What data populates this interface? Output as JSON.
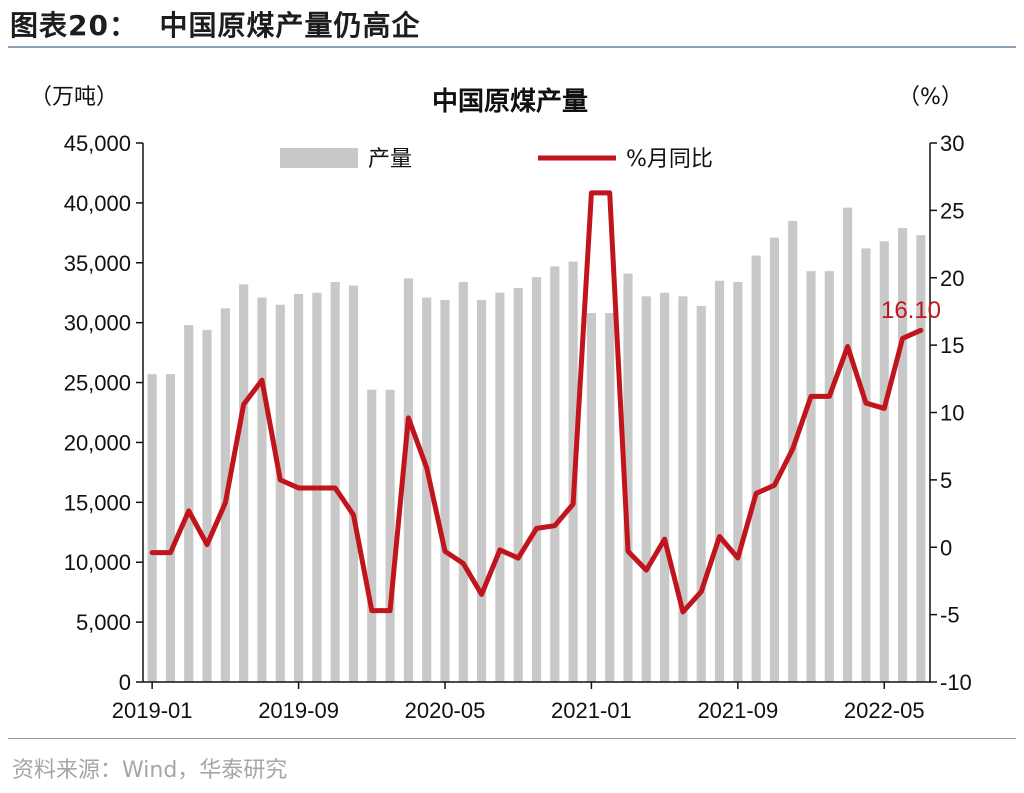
{
  "figure": {
    "title": "图表20：  中国原煤产量仍高企",
    "source": "资料来源：Wind，华泰研究"
  },
  "colors": {
    "bar": "#c8c8c8",
    "line": "#c0151c",
    "axis": "#111111",
    "rule": "#8aa0b8"
  },
  "chart_data": {
    "type": "bar",
    "title": "中国原煤产量",
    "left_unit": "（万吨）",
    "right_unit": "（%）",
    "ylim_left": [
      0,
      45000
    ],
    "ylim_right": [
      -10,
      30
    ],
    "y_ticks_left": [
      "0",
      "5,000",
      "10,000",
      "15,000",
      "20,000",
      "25,000",
      "30,000",
      "35,000",
      "40,000",
      "45,000"
    ],
    "y_ticks_right": [
      "-10",
      "-5",
      "0",
      "5",
      "10",
      "15",
      "20",
      "25",
      "30"
    ],
    "x_tick_labels": [
      "2019-01",
      "2019-09",
      "2020-05",
      "2021-01",
      "2021-09",
      "2022-05"
    ],
    "x_tick_indices": [
      0,
      8,
      16,
      24,
      32,
      40
    ],
    "categories": [
      "2019-01",
      "2019-02",
      "2019-03",
      "2019-04",
      "2019-05",
      "2019-06",
      "2019-07",
      "2019-08",
      "2019-09",
      "2019-10",
      "2019-11",
      "2019-12",
      "2020-01",
      "2020-02",
      "2020-03",
      "2020-04",
      "2020-05",
      "2020-06",
      "2020-07",
      "2020-08",
      "2020-09",
      "2020-10",
      "2020-11",
      "2020-12",
      "2021-01",
      "2021-02",
      "2021-03",
      "2021-04",
      "2021-05",
      "2021-06",
      "2021-07",
      "2021-08",
      "2021-09",
      "2021-10",
      "2021-11",
      "2021-12",
      "2022-01",
      "2022-02",
      "2022-03",
      "2022-04",
      "2022-05",
      "2022-06",
      "2022-07"
    ],
    "legend_position": "top",
    "grid": false,
    "series": [
      {
        "name": "产量",
        "type": "bar",
        "axis": "left",
        "values": [
          25700,
          25700,
          29800,
          29400,
          31200,
          33200,
          32100,
          31500,
          32400,
          32500,
          33400,
          33100,
          24400,
          24400,
          33700,
          32100,
          31900,
          33400,
          31900,
          32500,
          32900,
          33800,
          34700,
          35100,
          30800,
          30800,
          34100,
          32200,
          32500,
          32200,
          31400,
          33500,
          33400,
          35600,
          37100,
          38500,
          34300,
          34300,
          39600,
          36200,
          36800,
          37900,
          37300
        ]
      },
      {
        "name": "%月同比",
        "type": "line",
        "axis": "right",
        "values": [
          -0.4,
          -0.4,
          2.7,
          0.2,
          3.3,
          10.6,
          12.4,
          5.0,
          4.4,
          4.4,
          4.4,
          2.4,
          -4.7,
          -4.7,
          9.6,
          5.9,
          -0.3,
          -1.2,
          -3.5,
          -0.2,
          -0.8,
          1.4,
          1.6,
          3.2,
          26.3,
          26.3,
          -0.3,
          -1.7,
          0.6,
          -4.8,
          -3.3,
          0.8,
          -0.8,
          4.0,
          4.6,
          7.3,
          11.2,
          11.2,
          14.9,
          10.7,
          10.3,
          15.5,
          16.1
        ]
      }
    ],
    "annotation": {
      "text": "16.10",
      "series": 1,
      "index": 42
    }
  }
}
